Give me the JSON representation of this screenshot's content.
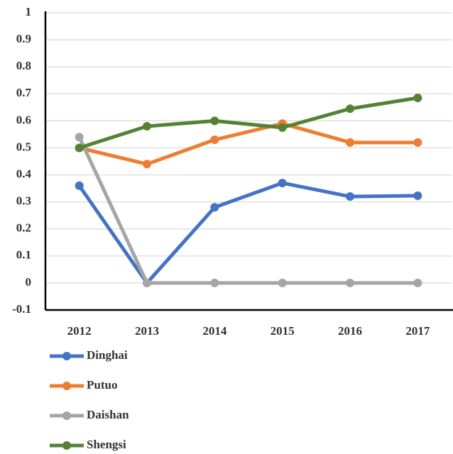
{
  "chart_data": {
    "type": "line",
    "categories": [
      "2012",
      "2013",
      "2014",
      "2015",
      "2016",
      "2017"
    ],
    "series": [
      {
        "name": "Dinghai",
        "color": "#4472c4",
        "values": [
          0.36,
          0,
          0.28,
          0.37,
          0.32,
          0.323
        ]
      },
      {
        "name": "Putuo",
        "color": "#ed7d31",
        "values": [
          0.5,
          0.44,
          0.53,
          0.59,
          0.52,
          0.52
        ]
      },
      {
        "name": "Daishan",
        "color": "#a5a5a5",
        "values": [
          0.54,
          0,
          0,
          0,
          0,
          0
        ]
      },
      {
        "name": "Shengsi",
        "color": "#548235",
        "values": [
          0.5,
          0.58,
          0.6,
          0.575,
          0.645,
          0.685
        ]
      }
    ],
    "ylim": [
      -0.1,
      1
    ],
    "yticks": [
      -0.1,
      0,
      0.1,
      0.2,
      0.3,
      0.4,
      0.5,
      0.6,
      0.7,
      0.8,
      0.9,
      1
    ],
    "grid": true,
    "legend": "bottom"
  }
}
